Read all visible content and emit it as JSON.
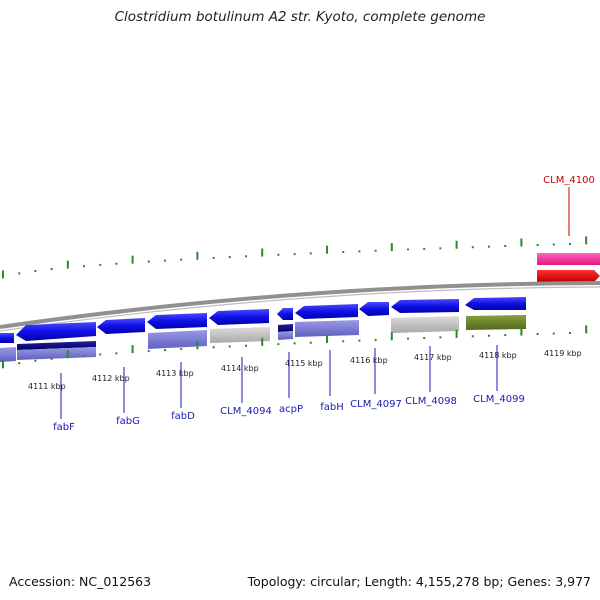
{
  "title": "Clostridium botulinum A2 str. Kyoto, complete genome",
  "accession": "Accession: NC_012563",
  "summary": "Topology: circular; Length: 4,155,278 bp; Genes: 3,977",
  "kbp_ticks": [
    "4111 kbp",
    "4112 kbp",
    "4113 kbp",
    "4114 kbp",
    "4115 kbp",
    "4116 kbp",
    "4117 kbp",
    "4118 kbp",
    "4119 kbp"
  ],
  "gene_labels": [
    {
      "text": "fabF",
      "color": "#1a1ab4"
    },
    {
      "text": "fabG",
      "color": "#1a1ab4"
    },
    {
      "text": "fabD",
      "color": "#1a1ab4"
    },
    {
      "text": "CLM_4094",
      "color": "#1a1ab4"
    },
    {
      "text": "acpP",
      "color": "#1a1ab4"
    },
    {
      "text": "fabH",
      "color": "#1a1ab4"
    },
    {
      "text": "CLM_4097",
      "color": "#1a1ab4"
    },
    {
      "text": "CLM_4098",
      "color": "#1a1ab4"
    },
    {
      "text": "CLM_4099",
      "color": "#1a1ab4"
    },
    {
      "text": "CLM_4100",
      "color": "#cc0000"
    }
  ],
  "colors": {
    "gene_blue": "#1515e0",
    "rna_pink": "#ff3399",
    "rna_red": "#ee0000",
    "tick_green": "#2a8a2a",
    "backbone": "#888888"
  }
}
